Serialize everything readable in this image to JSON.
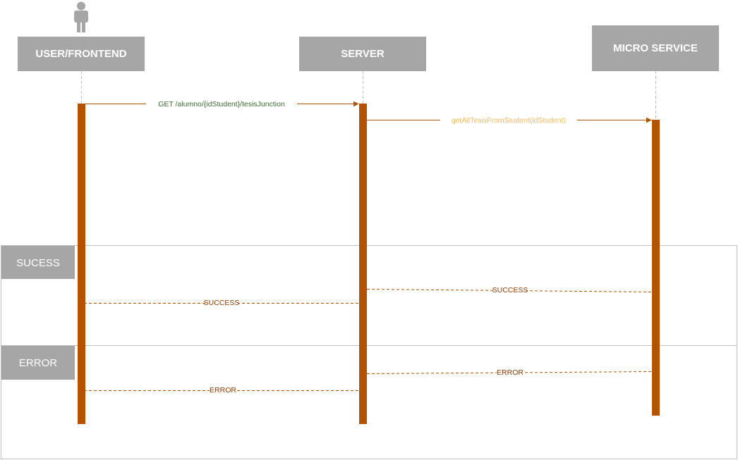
{
  "participants": {
    "user": {
      "label": "USER/FRONTEND",
      "icon": "actor-person-icon"
    },
    "server": {
      "label": "SERVER"
    },
    "micro": {
      "label": "MICRO SERVICE"
    }
  },
  "messages": {
    "request": {
      "label": "GET /alumno/{idStudent}/tesisJunction",
      "color": "#3d6b35"
    },
    "call": {
      "label": "getAllTesisFromStudent(idStudent)",
      "color": "#f5b85a"
    },
    "micro_success": {
      "label": "SUCCESS",
      "color": "#8a3b00"
    },
    "server_success": {
      "label": "SUCCESS",
      "color": "#8a3b00"
    },
    "micro_error": {
      "label": "ERROR",
      "color": "#8a3b00"
    },
    "server_error": {
      "label": "ERROR",
      "color": "#8a3b00"
    }
  },
  "fragments": {
    "success": {
      "label": "SUCESS"
    },
    "error": {
      "label": "ERROR"
    }
  },
  "colors": {
    "header_fill": "#a6a6a6",
    "activation": "#b35300",
    "arrow": "#b35300",
    "lifeline": "#bfbfbf",
    "frame_border": "#bfbfbf"
  }
}
